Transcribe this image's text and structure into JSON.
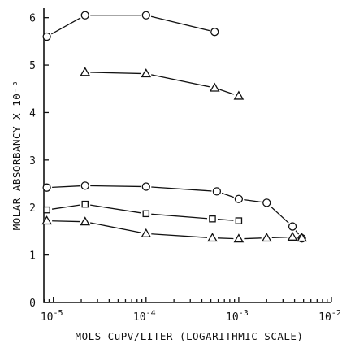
{
  "chart_data": {
    "type": "line",
    "title": "",
    "xlabel": "MOLS CuPV/LITER (LOGARITHMIC SCALE)",
    "ylabel": "MOLAR ABSORBANCY X 10⁻³",
    "x_scale": "log",
    "xlim": [
      7.9e-06,
      0.01
    ],
    "ylim": [
      0,
      6.2
    ],
    "grid": false,
    "x_ticks": [
      {
        "value": 1e-05,
        "base": "10",
        "exp": "-5"
      },
      {
        "value": 0.0001,
        "base": "10",
        "exp": "-4"
      },
      {
        "value": 0.001,
        "base": "10",
        "exp": "-3"
      },
      {
        "value": 0.01,
        "base": "10",
        "exp": "-2"
      }
    ],
    "y_ticks": [
      "0",
      "1",
      "2",
      "3",
      "4",
      "5",
      "6"
    ],
    "series": [
      {
        "marker": "circle",
        "x": [
          8.5e-06,
          2.2e-05,
          0.0001,
          0.00055
        ],
        "y": [
          5.6,
          6.05,
          6.05,
          5.7
        ]
      },
      {
        "marker": "triangle",
        "x": [
          2.2e-05,
          0.0001,
          0.00055,
          0.001
        ],
        "y": [
          4.85,
          4.82,
          4.52,
          4.35
        ]
      },
      {
        "marker": "circle",
        "x": [
          8.5e-06,
          2.2e-05,
          0.0001,
          0.00058,
          0.001,
          0.002,
          0.0038,
          0.0048
        ],
        "y": [
          2.42,
          2.46,
          2.44,
          2.34,
          2.18,
          2.1,
          1.6,
          1.35
        ]
      },
      {
        "marker": "square",
        "x": [
          8.5e-06,
          2.2e-05,
          0.0001,
          0.00052,
          0.001
        ],
        "y": [
          1.95,
          2.07,
          1.87,
          1.76,
          1.72
        ]
      },
      {
        "marker": "triangle",
        "x": [
          8.5e-06,
          2.2e-05,
          0.0001,
          0.00052,
          0.001,
          0.002,
          0.0038,
          0.0048
        ],
        "y": [
          1.72,
          1.7,
          1.45,
          1.36,
          1.34,
          1.36,
          1.38,
          1.36
        ]
      }
    ]
  }
}
